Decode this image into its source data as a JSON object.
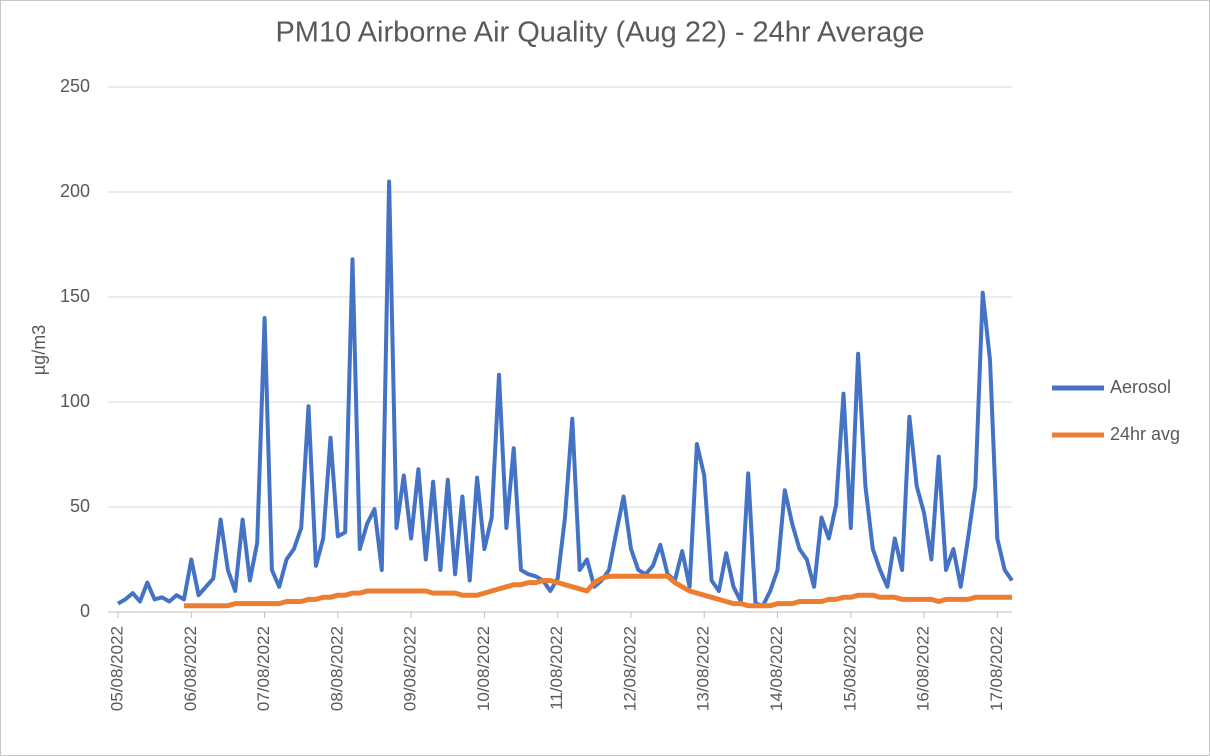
{
  "chart_data": {
    "type": "line",
    "title": "PM10 Airborne Air Quality (Aug 22) - 24hr Average",
    "y_label": "µg/m3",
    "x": [
      0,
      0.1,
      0.2,
      0.3,
      0.4,
      0.5,
      0.6,
      0.7,
      0.8,
      0.9,
      1,
      1.1,
      1.2,
      1.3,
      1.4,
      1.5,
      1.6,
      1.7,
      1.8,
      1.9,
      2,
      2.1,
      2.2,
      2.3,
      2.4,
      2.5,
      2.6,
      2.7,
      2.8,
      2.9,
      3,
      3.1,
      3.2,
      3.3,
      3.4,
      3.5,
      3.6,
      3.7,
      3.8,
      3.9,
      4,
      4.1,
      4.2,
      4.3,
      4.4,
      4.5,
      4.6,
      4.7,
      4.8,
      4.9,
      5,
      5.1,
      5.2,
      5.3,
      5.4,
      5.5,
      5.6,
      5.7,
      5.8,
      5.9,
      6,
      6.1,
      6.2,
      6.3,
      6.4,
      6.5,
      6.6,
      6.7,
      6.8,
      6.9,
      7,
      7.1,
      7.2,
      7.3,
      7.4,
      7.5,
      7.6,
      7.7,
      7.8,
      7.9,
      8,
      8.1,
      8.2,
      8.3,
      8.4,
      8.5,
      8.6,
      8.7,
      8.8,
      8.9,
      9,
      9.1,
      9.2,
      9.3,
      9.4,
      9.5,
      9.6,
      9.7,
      9.8,
      9.9,
      10,
      10.1,
      10.2,
      10.3,
      10.4,
      10.5,
      10.6,
      10.7,
      10.8,
      10.9,
      11,
      11.1,
      11.2,
      11.3,
      11.4,
      11.5,
      11.6,
      11.7,
      11.8,
      11.9,
      12,
      12.1,
      12.2
    ],
    "series": [
      {
        "name": "Aerosol",
        "color": "#4472c4",
        "values": [
          4,
          6,
          9,
          5,
          14,
          6,
          7,
          5,
          8,
          6,
          25,
          8,
          12,
          16,
          44,
          20,
          10,
          44,
          15,
          33,
          140,
          20,
          12,
          25,
          30,
          40,
          98,
          22,
          35,
          83,
          36,
          38,
          168,
          30,
          42,
          49,
          20,
          205,
          40,
          65,
          35,
          68,
          25,
          62,
          20,
          63,
          18,
          55,
          15,
          64,
          30,
          45,
          113,
          40,
          78,
          20,
          18,
          17,
          15,
          10,
          16,
          45,
          92,
          20,
          25,
          12,
          15,
          20,
          38,
          55,
          30,
          20,
          18,
          22,
          32,
          18,
          15,
          29,
          12,
          80,
          65,
          15,
          10,
          28,
          12,
          5,
          66,
          4,
          3,
          10,
          20,
          58,
          42,
          30,
          25,
          12,
          45,
          35,
          51,
          104,
          40,
          123,
          60,
          30,
          20,
          12,
          35,
          20,
          93,
          60,
          47,
          25,
          74,
          20,
          30,
          12,
          35,
          60,
          152,
          120,
          35,
          20,
          15
        ]
      },
      {
        "name": "24hr avg",
        "color": "#ed7d31",
        "values": [
          null,
          null,
          null,
          null,
          null,
          null,
          null,
          null,
          null,
          3,
          3,
          3,
          3,
          3,
          3,
          3,
          4,
          4,
          4,
          4,
          4,
          4,
          4,
          5,
          5,
          5,
          6,
          6,
          7,
          7,
          8,
          8,
          9,
          9,
          10,
          10,
          10,
          10,
          10,
          10,
          10,
          10,
          10,
          9,
          9,
          9,
          9,
          8,
          8,
          8,
          9,
          10,
          11,
          12,
          13,
          13,
          14,
          14,
          15,
          15,
          14,
          13,
          12,
          11,
          10,
          14,
          16,
          17,
          17,
          17,
          17,
          17,
          17,
          17,
          17,
          17,
          14,
          12,
          10,
          9,
          8,
          7,
          6,
          5,
          4,
          4,
          3,
          3,
          3,
          3,
          4,
          4,
          4,
          5,
          5,
          5,
          5,
          6,
          6,
          7,
          7,
          8,
          8,
          8,
          7,
          7,
          7,
          6,
          6,
          6,
          6,
          6,
          5,
          6,
          6,
          6,
          6,
          7,
          7,
          7,
          7,
          7,
          7
        ]
      }
    ],
    "xlim": [
      0,
      12.2
    ],
    "xticks": [
      {
        "value": 0,
        "label": "05/08/2022"
      },
      {
        "value": 1,
        "label": "06/08/2022"
      },
      {
        "value": 2,
        "label": "07/08/2022"
      },
      {
        "value": 3,
        "label": "08/08/2022"
      },
      {
        "value": 4,
        "label": "09/08/2022"
      },
      {
        "value": 5,
        "label": "10/08/2022"
      },
      {
        "value": 6,
        "label": "11/08/2022"
      },
      {
        "value": 7,
        "label": "12/08/2022"
      },
      {
        "value": 8,
        "label": "13/08/2022"
      },
      {
        "value": 9,
        "label": "14/08/2022"
      },
      {
        "value": 10,
        "label": "15/08/2022"
      },
      {
        "value": 11,
        "label": "16/08/2022"
      },
      {
        "value": 12,
        "label": "17/08/2022"
      }
    ],
    "ylim": [
      0,
      250
    ],
    "yticks": [
      0,
      50,
      100,
      150,
      200,
      250
    ],
    "grid": true,
    "legend": "right"
  }
}
